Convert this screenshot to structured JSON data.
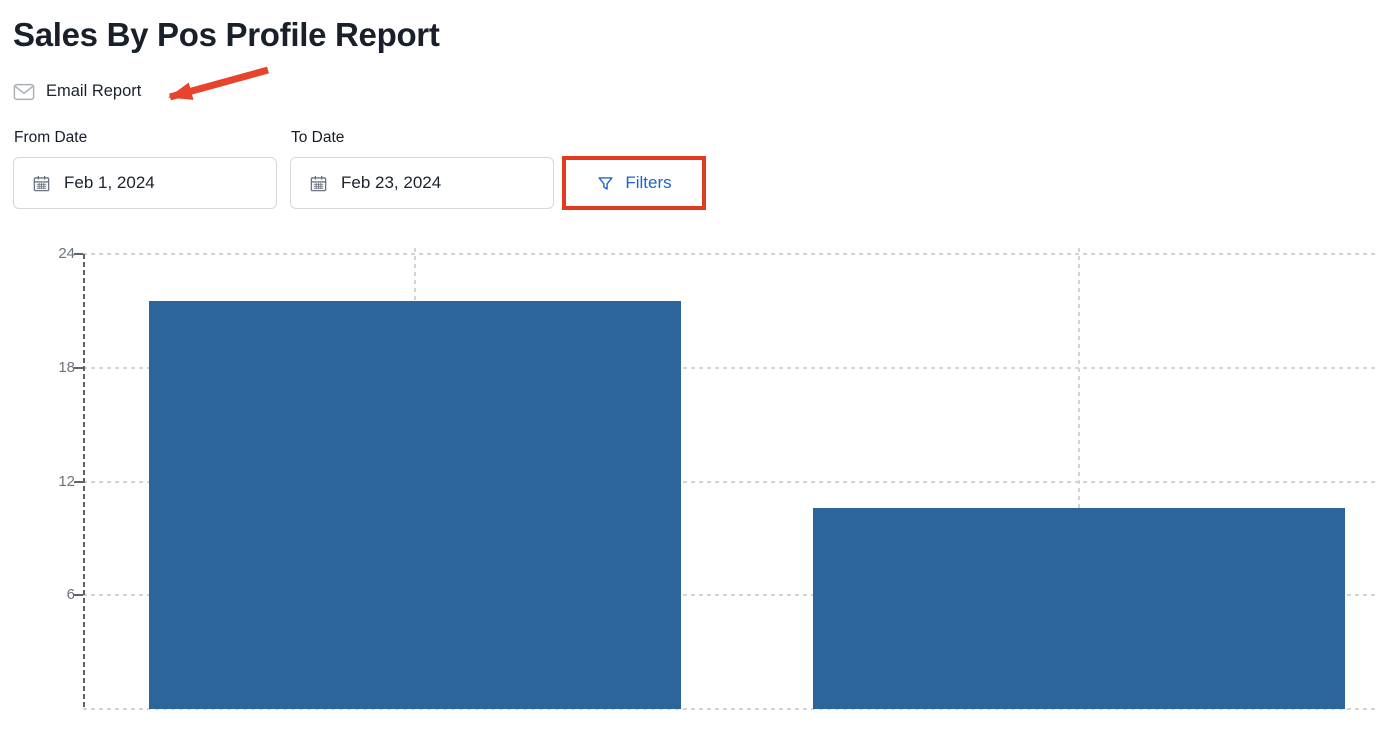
{
  "page": {
    "title": "Sales By Pos Profile Report"
  },
  "email_report": {
    "label": "Email Report",
    "icon": "mail-icon"
  },
  "annotations": {
    "arrow_color": "#e8432c",
    "filters_box_color": "#e23a1f"
  },
  "filters_bar": {
    "from_date": {
      "label": "From Date",
      "value": "Feb 1, 2024",
      "icon": "calendar-icon"
    },
    "to_date": {
      "label": "To Date",
      "value": "Feb 23, 2024",
      "icon": "calendar-icon"
    },
    "filters_button": {
      "label": "Filters",
      "icon": "filter-icon",
      "color": "#2163cc"
    }
  },
  "chart_data": {
    "type": "bar",
    "title": "",
    "categories": [
      "",
      ""
    ],
    "values": [
      21.5,
      10.6
    ],
    "bar_color": "#2b659b",
    "ylim": [
      0,
      24
    ],
    "yticks": [
      6,
      12,
      18,
      24
    ],
    "xlabel": "",
    "ylabel": "",
    "legend": "none",
    "grid": "dashed horizontal gridlines, dashed vertical line at each bar center, dashed y-axis"
  }
}
